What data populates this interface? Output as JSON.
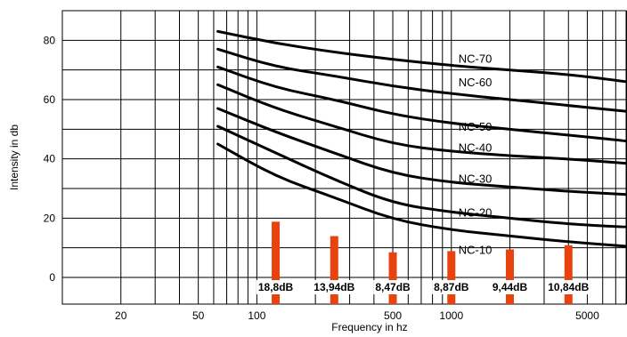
{
  "chart_data": {
    "type": "line",
    "xlabel": "Frequency in hz",
    "ylabel": "Intensity in db",
    "x_scale": "log",
    "xlim": [
      10,
      8000
    ],
    "ylim": [
      -9,
      90
    ],
    "x_ticks": [
      {
        "value": 20,
        "label": "20"
      },
      {
        "value": 50,
        "label": "50"
      },
      {
        "value": 100,
        "label": "100"
      },
      {
        "value": 500,
        "label": "500"
      },
      {
        "value": 1000,
        "label": "1000"
      },
      {
        "value": 5000,
        "label": "5000"
      }
    ],
    "y_ticks": [
      {
        "value": 0,
        "label": "0"
      },
      {
        "value": 20,
        "label": "20"
      },
      {
        "value": 40,
        "label": "40"
      },
      {
        "value": 60,
        "label": "60"
      },
      {
        "value": 80,
        "label": "80"
      }
    ],
    "grid": true,
    "series": [
      {
        "name": "NC-70",
        "label_at": [
          1000,
          74
        ],
        "points": [
          [
            63,
            83
          ],
          [
            125,
            79
          ],
          [
            250,
            76
          ],
          [
            500,
            73.5
          ],
          [
            1000,
            71.5
          ],
          [
            2000,
            70
          ],
          [
            4000,
            68.5
          ],
          [
            8000,
            66
          ]
        ]
      },
      {
        "name": "NC-60",
        "label_at": [
          1000,
          66
        ],
        "points": [
          [
            63,
            77
          ],
          [
            125,
            71
          ],
          [
            250,
            68
          ],
          [
            500,
            64.5
          ],
          [
            1000,
            62
          ],
          [
            2000,
            60
          ],
          [
            4000,
            58
          ],
          [
            8000,
            56
          ]
        ]
      },
      {
        "name": "NC-50",
        "label_at": [
          1000,
          51
        ],
        "points": [
          [
            63,
            71
          ],
          [
            125,
            64
          ],
          [
            250,
            60
          ],
          [
            500,
            55
          ],
          [
            1000,
            52
          ],
          [
            2000,
            50
          ],
          [
            4000,
            48
          ],
          [
            8000,
            46
          ]
        ]
      },
      {
        "name": "NC-40",
        "label_at": [
          1000,
          44
        ],
        "points": [
          [
            63,
            65
          ],
          [
            125,
            57
          ],
          [
            250,
            51
          ],
          [
            500,
            45
          ],
          [
            1000,
            42.5
          ],
          [
            2000,
            41
          ],
          [
            4000,
            40
          ],
          [
            8000,
            38.5
          ]
        ]
      },
      {
        "name": "NC-30",
        "label_at": [
          1000,
          33.5
        ],
        "points": [
          [
            63,
            57
          ],
          [
            125,
            49
          ],
          [
            250,
            42
          ],
          [
            500,
            35
          ],
          [
            1000,
            32
          ],
          [
            2000,
            30.5
          ],
          [
            4000,
            29
          ],
          [
            8000,
            28
          ]
        ]
      },
      {
        "name": "NC-20",
        "label_at": [
          1000,
          22
        ],
        "points": [
          [
            63,
            51
          ],
          [
            125,
            42
          ],
          [
            250,
            33
          ],
          [
            500,
            25
          ],
          [
            1000,
            22
          ],
          [
            2000,
            20
          ],
          [
            4000,
            18
          ],
          [
            8000,
            17
          ]
        ]
      },
      {
        "name": "NC-10",
        "label_at": [
          1000,
          9.5
        ],
        "points": [
          [
            63,
            45
          ],
          [
            125,
            34
          ],
          [
            250,
            27
          ],
          [
            500,
            19.5
          ],
          [
            1000,
            16
          ],
          [
            2000,
            14
          ],
          [
            4000,
            12
          ],
          [
            8000,
            10.5
          ]
        ]
      }
    ],
    "bars": [
      {
        "x": 125,
        "value": 18.8,
        "label": "18,8dB"
      },
      {
        "x": 250,
        "value": 13.94,
        "label": "13,94dB"
      },
      {
        "x": 500,
        "value": 8.47,
        "label": "8,47dB"
      },
      {
        "x": 1000,
        "value": 8.87,
        "label": "8,87dB"
      },
      {
        "x": 2000,
        "value": 9.44,
        "label": "9,44dB"
      },
      {
        "x": 4000,
        "value": 10.84,
        "label": "10,84dB"
      }
    ],
    "colors": {
      "bar": "#e8420f",
      "curve": "#000000",
      "grid": "#000000"
    }
  }
}
